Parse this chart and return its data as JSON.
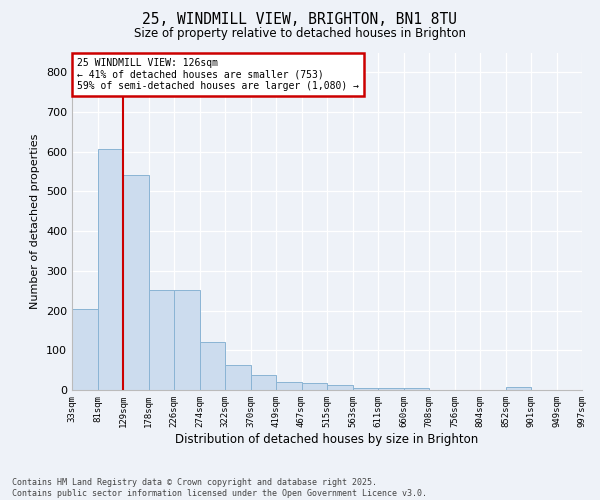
{
  "title1": "25, WINDMILL VIEW, BRIGHTON, BN1 8TU",
  "title2": "Size of property relative to detached houses in Brighton",
  "xlabel": "Distribution of detached houses by size in Brighton",
  "ylabel": "Number of detached properties",
  "bar_values": [
    203,
    607,
    542,
    251,
    251,
    120,
    62,
    37,
    20,
    18,
    13,
    5,
    5,
    5,
    1,
    0,
    0,
    8,
    0,
    0
  ],
  "categories": [
    "33sqm",
    "81sqm",
    "129sqm",
    "178sqm",
    "226sqm",
    "274sqm",
    "322sqm",
    "370sqm",
    "419sqm",
    "467sqm",
    "515sqm",
    "563sqm",
    "611sqm",
    "660sqm",
    "708sqm",
    "756sqm",
    "804sqm",
    "852sqm",
    "901sqm",
    "949sqm",
    "997sqm"
  ],
  "bar_color": "#ccdcee",
  "bar_edge_color": "#8ab4d4",
  "vline_x": 2,
  "vline_color": "#cc0000",
  "annotation_box_color": "#cc0000",
  "annotation_text1": "25 WINDMILL VIEW: 126sqm",
  "annotation_text2": "← 41% of detached houses are smaller (753)",
  "annotation_text3": "59% of semi-detached houses are larger (1,080) →",
  "ylim": [
    0,
    850
  ],
  "yticks": [
    0,
    100,
    200,
    300,
    400,
    500,
    600,
    700,
    800
  ],
  "footer1": "Contains HM Land Registry data © Crown copyright and database right 2025.",
  "footer2": "Contains public sector information licensed under the Open Government Licence v3.0.",
  "bg_color": "#eef2f8",
  "plot_bg_color": "#eef2f8",
  "title1_fontsize": 10.5,
  "title2_fontsize": 8.5
}
